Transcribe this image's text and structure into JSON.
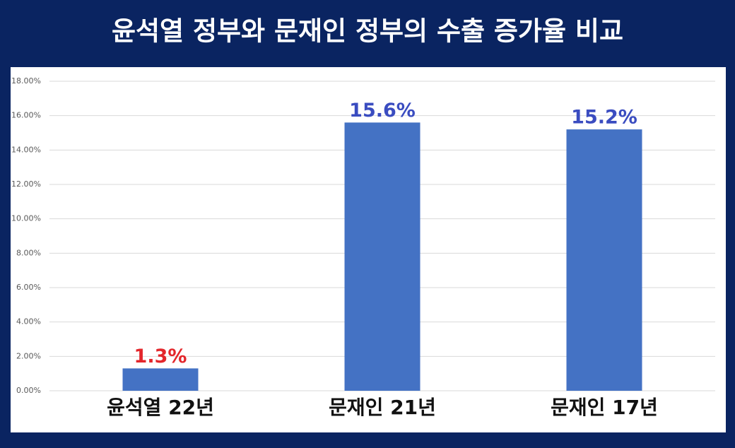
{
  "chart_data": {
    "type": "bar",
    "title": "윤석열 정부와 문재인 정부의 수출 증가율 비교",
    "categories": [
      "윤석열 22년",
      "문재인 21년",
      "문재인 17년"
    ],
    "values": [
      1.3,
      15.6,
      15.2
    ],
    "value_labels": [
      "1.3%",
      "15.6%",
      "15.2%"
    ],
    "label_colors": [
      "#e3262b",
      "#3a4cc0",
      "#3a4cc0"
    ],
    "color": "#4472c4",
    "ylim": [
      0,
      18
    ],
    "yticks": [
      {
        "value": 0,
        "label": "0.00%"
      },
      {
        "value": 2,
        "label": "2.00%"
      },
      {
        "value": 4,
        "label": "4.00%"
      },
      {
        "value": 6,
        "label": "6.00%"
      },
      {
        "value": 8,
        "label": "8.00%"
      },
      {
        "value": 10,
        "label": "10.00%"
      },
      {
        "value": 12,
        "label": "12.00%"
      },
      {
        "value": 14,
        "label": "14.00%"
      },
      {
        "value": 16,
        "label": "16.00%"
      },
      {
        "value": 18,
        "label": "18.00%"
      }
    ],
    "grid": true
  }
}
